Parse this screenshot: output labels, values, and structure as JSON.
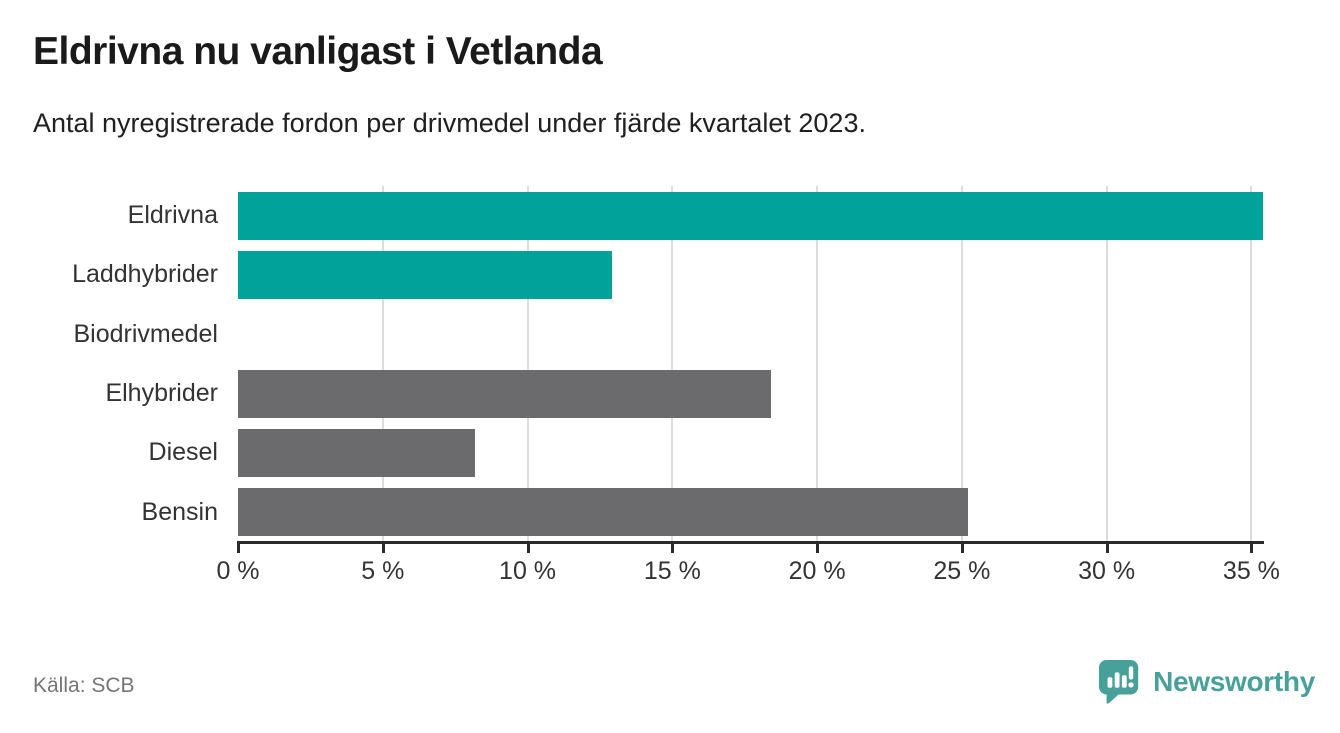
{
  "header": {
    "title": "Eldrivna nu vanligast i Vetlanda",
    "subtitle": "Antal nyregistrerade fordon per drivmedel under fjärde kvartalet 2023."
  },
  "chart_data": {
    "type": "bar",
    "orientation": "horizontal",
    "title": "Eldrivna nu vanligast i Vetlanda",
    "subtitle": "Antal nyregistrerade fordon per drivmedel under fjärde kvartalet 2023.",
    "categories": [
      "Eldrivna",
      "Laddhybrider",
      "Biodrivmedel",
      "Elhybrider",
      "Diesel",
      "Bensin"
    ],
    "values": [
      35.4,
      12.9,
      0,
      18.4,
      8.2,
      25.2
    ],
    "unit": "%",
    "bar_colors": [
      "#00a29a",
      "#00a29a",
      "#6b6b6e",
      "#6b6b6e",
      "#6b6b6e",
      "#6b6b6e"
    ],
    "highlight_color": "#00a29a",
    "default_color": "#6b6b6e",
    "xlim": [
      0,
      35.4
    ],
    "x_ticks": [
      0,
      5,
      10,
      15,
      20,
      25,
      30,
      35
    ],
    "x_tick_labels": [
      "0 %",
      "5 %",
      "10 %",
      "15 %",
      "20 %",
      "25 %",
      "30 %",
      "35 %"
    ],
    "grid": "vertical",
    "gridline_color": "#dcdcdc",
    "legend": "none"
  },
  "footer": {
    "source": "Källa: SCB",
    "brand": "Newsworthy",
    "brand_color": "#47a09a"
  }
}
